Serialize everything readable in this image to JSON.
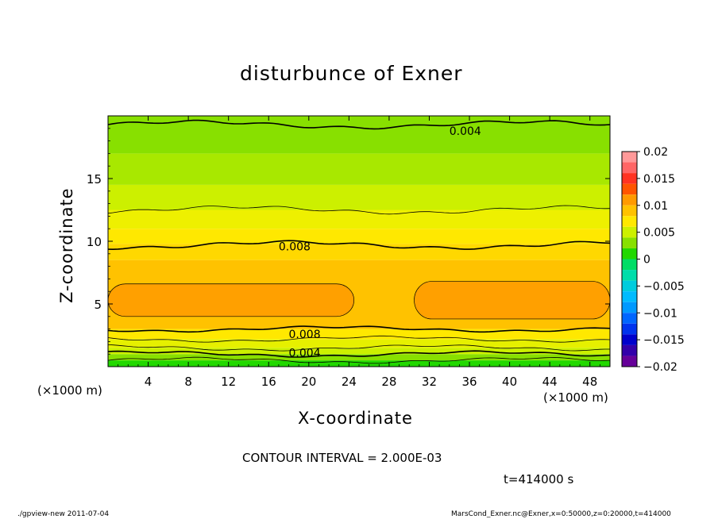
{
  "chart_data": {
    "type": "heatmap",
    "title": "disturbunce of Exner",
    "xlabel": "X-coordinate",
    "ylabel": "Z-coordinate",
    "x_unit_label": "(×1000 m)",
    "y_unit_label": "(×1000 m)",
    "xlim": [
      0,
      50
    ],
    "ylim": [
      0,
      20
    ],
    "x_ticks": [
      4,
      8,
      12,
      16,
      20,
      24,
      28,
      32,
      36,
      40,
      44,
      48
    ],
    "y_ticks": [
      5,
      10,
      15
    ],
    "contour_interval_text": "CONTOUR INTERVAL = 2.000E-03",
    "contour_labels": [
      {
        "text": "0.004",
        "x": 34,
        "z": 18.8
      },
      {
        "text": "0.008",
        "x": 17,
        "z": 9.6
      },
      {
        "text": "0.008",
        "x": 18,
        "z": 2.6
      },
      {
        "text": "0.004",
        "x": 18,
        "z": 1.1
      }
    ],
    "colorbar": {
      "ticks": [
        "0.02",
        "0.015",
        "0.01",
        "0.005",
        "0",
        "−0.005",
        "−0.01",
        "−0.015",
        "−0.02"
      ],
      "levels": [
        0.02,
        0.015,
        0.01,
        0.005,
        0,
        -0.005,
        -0.01,
        -0.015,
        -0.02
      ],
      "bands": [
        {
          "lo": 0.018,
          "hi": 0.02,
          "color": "#ff9999"
        },
        {
          "lo": 0.016,
          "hi": 0.018,
          "color": "#ff6666"
        },
        {
          "lo": 0.014,
          "hi": 0.016,
          "color": "#ff3322"
        },
        {
          "lo": 0.012,
          "hi": 0.014,
          "color": "#ff5500"
        },
        {
          "lo": 0.01,
          "hi": 0.012,
          "color": "#ff9a00"
        },
        {
          "lo": 0.008,
          "hi": 0.01,
          "color": "#ffc200"
        },
        {
          "lo": 0.006,
          "hi": 0.008,
          "color": "#ffe800"
        },
        {
          "lo": 0.004,
          "hi": 0.006,
          "color": "#ccf000"
        },
        {
          "lo": 0.002,
          "hi": 0.004,
          "color": "#88e000"
        },
        {
          "lo": 0.0,
          "hi": 0.002,
          "color": "#22d800"
        },
        {
          "lo": -0.002,
          "hi": 0.0,
          "color": "#00dd66"
        },
        {
          "lo": -0.004,
          "hi": -0.002,
          "color": "#00ddaa"
        },
        {
          "lo": -0.006,
          "hi": -0.004,
          "color": "#00ccdd"
        },
        {
          "lo": -0.008,
          "hi": -0.006,
          "color": "#00bbff"
        },
        {
          "lo": -0.01,
          "hi": -0.008,
          "color": "#0099ff"
        },
        {
          "lo": -0.012,
          "hi": -0.01,
          "color": "#0066ff"
        },
        {
          "lo": -0.014,
          "hi": -0.012,
          "color": "#0033ee"
        },
        {
          "lo": -0.016,
          "hi": -0.014,
          "color": "#0000cc"
        },
        {
          "lo": -0.018,
          "hi": -0.016,
          "color": "#3300aa"
        },
        {
          "lo": -0.02,
          "hi": -0.018,
          "color": "#660099"
        }
      ]
    },
    "field_bands": [
      {
        "z0": 0.0,
        "z1": 0.5,
        "value": 0.001,
        "color": "#22d800"
      },
      {
        "z0": 0.5,
        "z1": 1.0,
        "value": 0.003,
        "color": "#88e000"
      },
      {
        "z0": 1.0,
        "z1": 1.5,
        "value": 0.005,
        "color": "#ccf000"
      },
      {
        "z0": 1.5,
        "z1": 2.2,
        "value": 0.006,
        "color": "#e6f000"
      },
      {
        "z0": 2.2,
        "z1": 3.0,
        "value": 0.007,
        "color": "#ffe800"
      },
      {
        "z0": 3.0,
        "z1": 8.5,
        "value": 0.009,
        "color": "#ffc200"
      },
      {
        "z0": 8.5,
        "z1": 9.8,
        "value": 0.008,
        "color": "#ffd800"
      },
      {
        "z0": 9.8,
        "z1": 11.0,
        "value": 0.007,
        "color": "#ffe800"
      },
      {
        "z0": 11.0,
        "z1": 12.5,
        "value": 0.006,
        "color": "#eef000"
      },
      {
        "z0": 12.5,
        "z1": 14.5,
        "value": 0.005,
        "color": "#ccf000"
      },
      {
        "z0": 14.5,
        "z1": 17.0,
        "value": 0.004,
        "color": "#a8e800"
      },
      {
        "z0": 17.0,
        "z1": 20.0,
        "value": 0.003,
        "color": "#88e000"
      }
    ],
    "blobs": [
      {
        "x0": 0.0,
        "x1": 24.5,
        "z0": 4.0,
        "z1": 6.6,
        "value": 0.0105,
        "color": "#ffa000"
      },
      {
        "x0": 30.5,
        "x1": 50.0,
        "z0": 3.8,
        "z1": 6.8,
        "value": 0.0105,
        "color": "#ffa000"
      }
    ]
  },
  "timestamp_text": "t=414000 s",
  "footer": {
    "left": "./gpview-new   2011-07-04",
    "right": "MarsCond_Exner.nc@Exner,x=0:50000,z=0:20000,t=414000"
  }
}
